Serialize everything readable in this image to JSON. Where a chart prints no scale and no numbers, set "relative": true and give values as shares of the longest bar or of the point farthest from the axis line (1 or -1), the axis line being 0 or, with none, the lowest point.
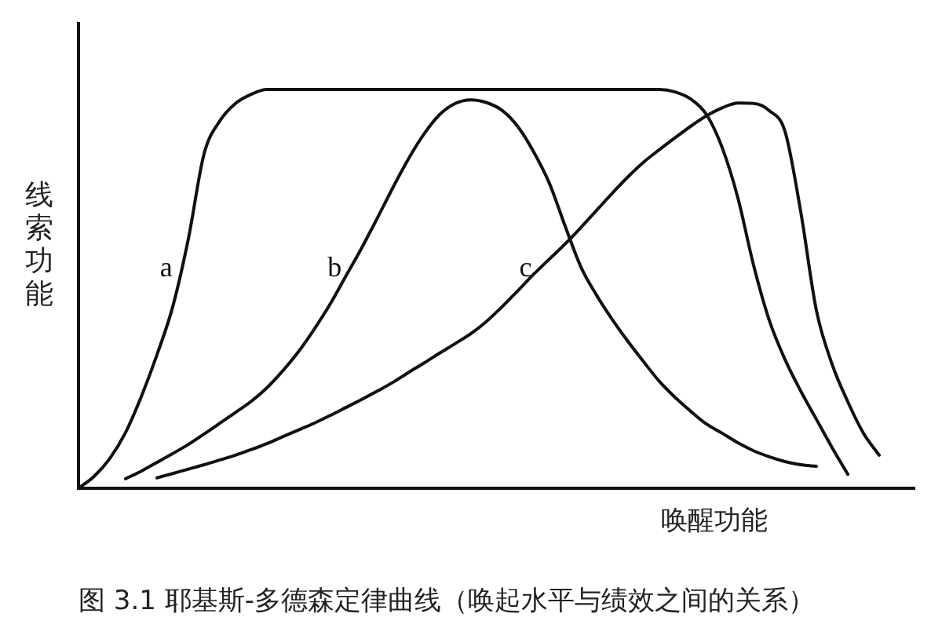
{
  "chart_data": {
    "type": "line",
    "relative": true,
    "line_style": "solid",
    "xlabel": "唤醒功能",
    "ylabel": "线索功能",
    "annotations": [
      "图 3.1 耶基斯-多德森定律曲线（唤起水平与绩效之间的关系）"
    ],
    "categories": [
      null,
      null,
      null,
      null,
      null,
      null,
      null,
      null,
      null,
      null,
      null,
      null,
      null,
      null,
      null,
      null,
      null,
      null,
      null,
      null,
      null,
      null,
      null,
      null,
      null,
      null,
      null,
      null,
      null,
      null,
      null,
      null,
      null,
      null,
      null,
      null,
      null,
      null,
      null,
      null,
      null,
      null,
      null,
      null,
      null,
      null,
      null,
      null,
      null,
      null,
      null,
      null,
      null,
      null
    ],
    "series": [
      {
        "name": "a",
        "color": "#111111",
        "values": [
          0,
          0.03,
          0.075,
          0.14,
          0.23,
          0.335,
          0.455,
          0.626,
          0.839,
          0.921,
          0.965,
          0.988,
          1,
          1,
          1,
          1,
          1,
          1,
          1,
          1,
          1,
          1,
          1,
          1,
          1,
          1,
          1,
          1,
          1,
          1,
          1,
          1,
          1,
          1,
          1,
          1,
          1,
          1,
          0.994,
          0.976,
          0.937,
          0.854,
          0.728,
          0.559,
          0.421,
          0.323,
          0.244,
          0.173,
          0.102,
          0.035,
          null,
          null,
          null,
          null
        ]
      },
      {
        "name": "b",
        "color": "#111111",
        "values": [
          null,
          null,
          null,
          0.024,
          0.043,
          0.065,
          0.087,
          0.11,
          0.136,
          0.163,
          0.19,
          0.218,
          0.252,
          0.294,
          0.342,
          0.398,
          0.46,
          0.53,
          0.6,
          0.675,
          0.752,
          0.825,
          0.888,
          0.937,
          0.965,
          0.974,
          0.967,
          0.947,
          0.906,
          0.843,
          0.764,
          0.657,
          0.555,
          0.484,
          0.423,
          0.368,
          0.317,
          0.268,
          0.228,
          0.193,
          0.161,
          0.138,
          0.114,
          0.094,
          0.079,
          0.067,
          0.059,
          0.055,
          null,
          null,
          null,
          null,
          null,
          null
        ]
      },
      {
        "name": "c",
        "color": "#111111",
        "values": [
          null,
          null,
          null,
          null,
          null,
          0.026,
          0.037,
          0.048,
          0.059,
          0.071,
          0.083,
          0.097,
          0.112,
          0.129,
          0.146,
          0.163,
          0.182,
          0.202,
          0.222,
          0.243,
          0.265,
          0.29,
          0.314,
          0.339,
          0.363,
          0.388,
          0.419,
          0.456,
          0.496,
          0.537,
          0.575,
          0.613,
          0.654,
          0.697,
          0.74,
          0.781,
          0.818,
          0.849,
          0.879,
          0.908,
          0.934,
          0.954,
          0.966,
          0.965,
          0.947,
          0.895,
          0.694,
          0.446,
          0.311,
          0.217,
          0.138,
          0.083,
          null,
          null
        ]
      }
    ]
  }
}
